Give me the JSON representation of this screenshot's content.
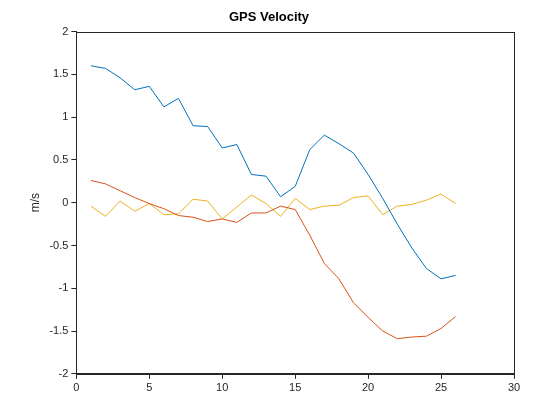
{
  "chart_data": {
    "type": "line",
    "title": "GPS Velocity",
    "y_label": "m/s",
    "x": [
      1,
      2,
      3,
      4,
      5,
      6,
      7,
      8,
      9,
      10,
      11,
      12,
      13,
      14,
      15,
      16,
      17,
      18,
      19,
      20,
      21,
      22,
      23,
      24,
      25,
      26
    ],
    "series": [
      {
        "color": "#0072bd",
        "values": [
          1.6,
          1.57,
          1.46,
          1.32,
          1.36,
          1.12,
          1.22,
          0.9,
          0.89,
          0.64,
          0.68,
          0.33,
          0.31,
          0.07,
          0.19,
          0.62,
          0.79,
          0.69,
          0.58,
          0.33,
          0.05,
          -0.25,
          -0.53,
          -0.77,
          -0.89,
          -0.85
        ]
      },
      {
        "color": "#d95319",
        "values": [
          0.26,
          0.22,
          0.14,
          0.06,
          -0.01,
          -0.07,
          -0.15,
          -0.17,
          -0.22,
          -0.19,
          -0.23,
          -0.12,
          -0.12,
          -0.04,
          -0.08,
          -0.38,
          -0.71,
          -0.89,
          -1.17,
          -1.34,
          -1.5,
          -1.59,
          -1.57,
          -1.56,
          -1.47,
          -1.33
        ]
      },
      {
        "color": "#edb120",
        "values": [
          -0.04,
          -0.16,
          0.02,
          -0.1,
          -0.01,
          -0.14,
          -0.13,
          0.04,
          0.02,
          -0.19,
          -0.05,
          0.09,
          -0.01,
          -0.16,
          0.05,
          -0.08,
          -0.04,
          -0.03,
          0.06,
          0.08,
          -0.14,
          -0.04,
          -0.02,
          0.03,
          0.1,
          -0.01
        ]
      }
    ],
    "xlim": [
      0,
      30
    ],
    "xticks": [
      0,
      5,
      10,
      15,
      20,
      25,
      30
    ],
    "ylim": [
      -2,
      2
    ],
    "yticks": [
      -2,
      -1.5,
      -1,
      -0.5,
      0,
      0.5,
      1,
      1.5,
      2
    ],
    "grid": false
  }
}
